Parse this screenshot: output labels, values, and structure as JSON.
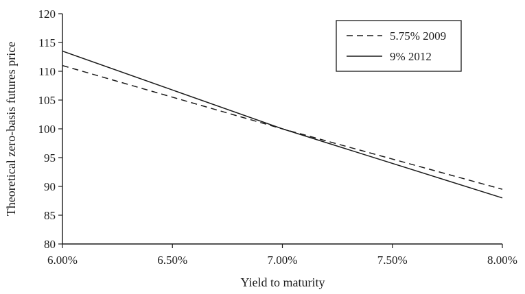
{
  "chart_data": {
    "type": "line",
    "title": "",
    "xlabel": "Yield to maturity",
    "ylabel": "Theoretical zero-basis futures price",
    "x_ticks": [
      "6.00%",
      "6.50%",
      "7.00%",
      "7.50%",
      "8.00%"
    ],
    "x_tick_values": [
      6.0,
      6.5,
      7.0,
      7.5,
      8.0
    ],
    "y_ticks": [
      "80",
      "85",
      "90",
      "95",
      "100",
      "105",
      "110",
      "115",
      "120"
    ],
    "y_tick_values": [
      80,
      85,
      90,
      95,
      100,
      105,
      110,
      115,
      120
    ],
    "xlim": [
      6.0,
      8.0
    ],
    "ylim": [
      80,
      120
    ],
    "grid": false,
    "legend_position": "top-right",
    "series": [
      {
        "name": "5.75% 2009",
        "style": "dashed",
        "color": "#1a1a1a",
        "x": [
          6.0,
          7.0,
          8.0
        ],
        "y": [
          111.0,
          100.0,
          89.5
        ]
      },
      {
        "name": "9% 2012",
        "style": "solid",
        "color": "#1a1a1a",
        "x": [
          6.0,
          7.0,
          8.0
        ],
        "y": [
          113.5,
          100.0,
          88.0
        ]
      }
    ]
  }
}
